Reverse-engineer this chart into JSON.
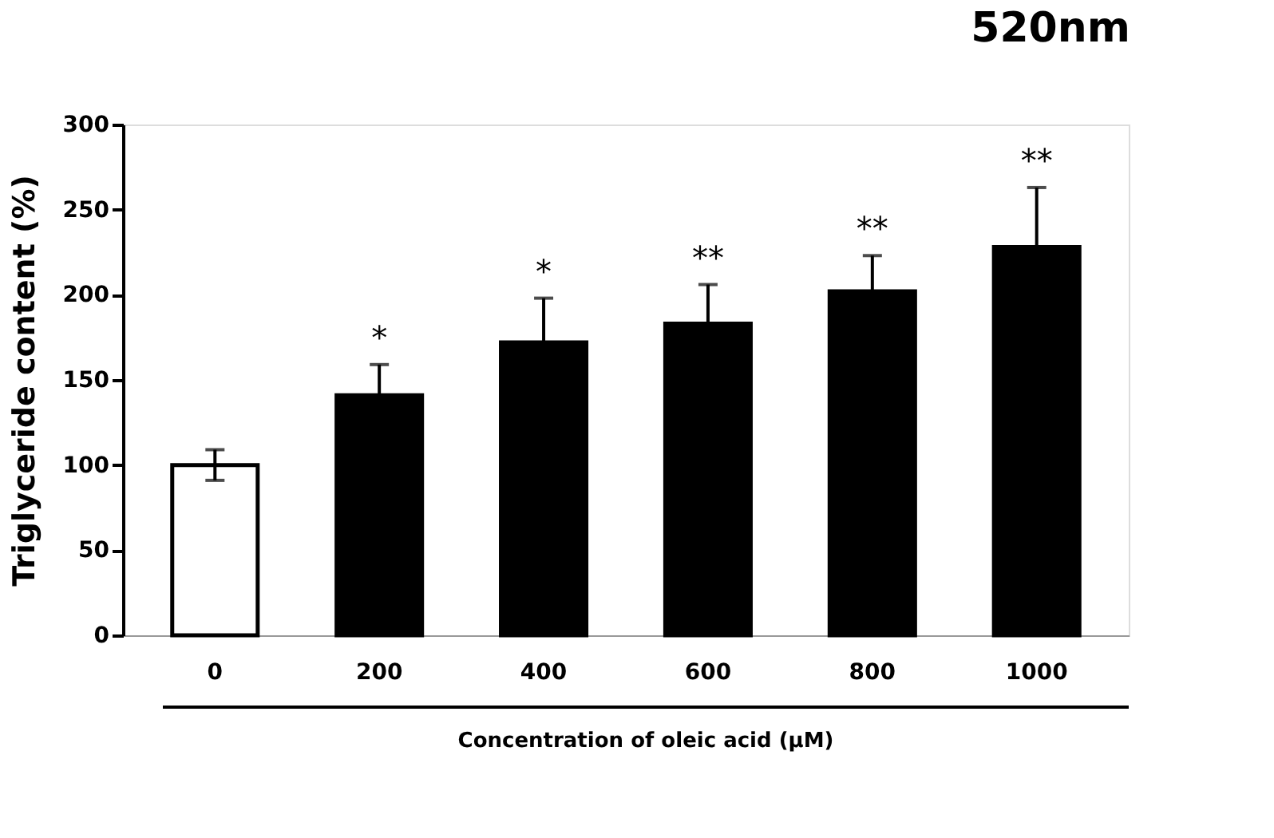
{
  "chart_data": {
    "type": "bar",
    "title": "520nm",
    "xlabel": "Concentration of oleic acid (μM)",
    "ylabel": "Triglyceride content (%)",
    "categories": [
      "0",
      "200",
      "400",
      "600",
      "800",
      "1000"
    ],
    "values": [
      100,
      141,
      172,
      183,
      202,
      228
    ],
    "colors": [
      "#ffffff",
      "#000000",
      "#000000",
      "#000000",
      "#000000",
      "#000000"
    ],
    "errors": [
      9,
      18,
      26,
      23,
      21,
      35
    ],
    "ylim": [
      0,
      300
    ],
    "yticks": [
      0,
      50,
      100,
      150,
      200,
      250,
      300
    ],
    "grid": false,
    "annotations": [
      {
        "text": "*",
        "x": "200",
        "y": 159
      },
      {
        "text": "*",
        "x": "400",
        "y": 198
      },
      {
        "text": "**",
        "x": "600",
        "y": 206
      },
      {
        "text": "**",
        "x": "800",
        "y": 223
      },
      {
        "text": "**",
        "x": "1000",
        "y": 263
      }
    ]
  }
}
